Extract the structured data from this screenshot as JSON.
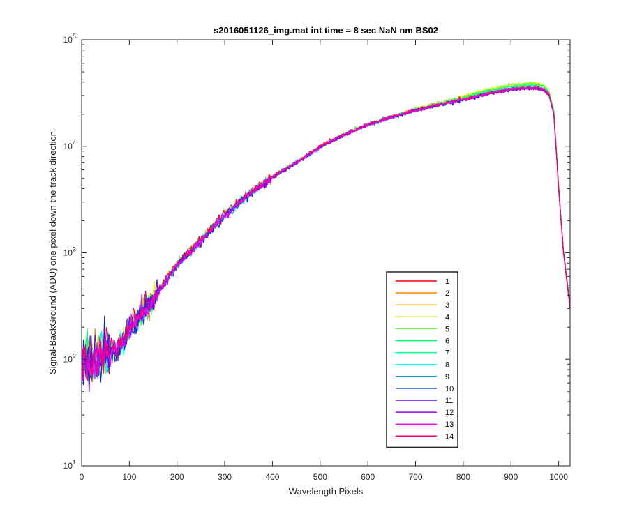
{
  "chart_data": {
    "type": "line",
    "title": "s2016051126_img.mat int time = 8 sec  NaN nm BS02",
    "xlabel": "Wavelength Pixels",
    "ylabel": "Signal-BackGround (ADU) one pixel down the track direction",
    "xlim": [
      0,
      1024
    ],
    "ylim": [
      10,
      100000
    ],
    "yscale": "log",
    "grid": false,
    "legend_position": "lower-right",
    "x_ticks": [
      0,
      100,
      200,
      300,
      400,
      500,
      600,
      700,
      800,
      900,
      1000
    ],
    "y_ticks": [
      {
        "value": 10,
        "base": "10",
        "exp": "1"
      },
      {
        "value": 100,
        "base": "10",
        "exp": "2"
      },
      {
        "value": 1000,
        "base": "10",
        "exp": "3"
      },
      {
        "value": 10000,
        "base": "10",
        "exp": "4"
      },
      {
        "value": 100000,
        "base": "10",
        "exp": "5"
      }
    ],
    "x": [
      0,
      10,
      20,
      40,
      60,
      80,
      100,
      150,
      200,
      250,
      300,
      350,
      400,
      450,
      500,
      550,
      600,
      650,
      700,
      750,
      800,
      850,
      900,
      930,
      950,
      960,
      970,
      980,
      990,
      1000,
      1010,
      1024
    ],
    "series": [
      {
        "name": "1",
        "color": "#ff0000",
        "values": [
          90,
          110,
          100,
          115,
          125,
          140,
          200,
          380,
          800,
          1350,
          2350,
          3600,
          5200,
          7100,
          10000,
          12900,
          16000,
          18900,
          22000,
          25000,
          28000,
          31500,
          34500,
          35000,
          34800,
          34000,
          33000,
          30000,
          20000,
          4000,
          1000,
          300
        ]
      },
      {
        "name": "2",
        "color": "#ff7f00",
        "values": [
          85,
          105,
          95,
          112,
          122,
          135,
          195,
          370,
          780,
          1320,
          2300,
          3550,
          5150,
          7050,
          9900,
          12800,
          15900,
          18850,
          22100,
          25200,
          28300,
          32500,
          35500,
          36500,
          36800,
          35800,
          34500,
          31000,
          20500,
          4100,
          1020,
          310
        ]
      },
      {
        "name": "3",
        "color": "#ffcc00",
        "values": [
          88,
          108,
          98,
          114,
          124,
          138,
          198,
          375,
          790,
          1330,
          2310,
          3560,
          5170,
          7080,
          9950,
          12850,
          15950,
          18900,
          22300,
          25600,
          29000,
          33800,
          37000,
          38200,
          38600,
          37500,
          36000,
          32000,
          21000,
          4200,
          1040,
          320
        ]
      },
      {
        "name": "4",
        "color": "#ccff00",
        "values": [
          87,
          106,
          97,
          113,
          123,
          137,
          196,
          372,
          785,
          1325,
          2305,
          3555,
          5160,
          7060,
          9920,
          12820,
          15920,
          18880,
          22200,
          25500,
          29200,
          34200,
          37800,
          39200,
          39800,
          38800,
          37200,
          33000,
          21500,
          4300,
          1050,
          325
        ]
      },
      {
        "name": "5",
        "color": "#66ff33",
        "values": [
          86,
          105,
          96,
          112,
          122,
          136,
          195,
          370,
          780,
          1320,
          2300,
          3550,
          5150,
          7050,
          9900,
          12800,
          15900,
          18850,
          22100,
          25300,
          28900,
          33700,
          37200,
          38500,
          39000,
          38100,
          36600,
          32500,
          21300,
          4250,
          1045,
          322
        ]
      },
      {
        "name": "6",
        "color": "#00ff66",
        "values": [
          85,
          104,
          95,
          111,
          121,
          135,
          194,
          368,
          775,
          1310,
          2290,
          3540,
          5140,
          7040,
          9890,
          12790,
          15890,
          18840,
          22000,
          25100,
          28500,
          33000,
          36400,
          37600,
          38000,
          37200,
          35800,
          31800,
          21000,
          4200,
          1040,
          320
        ]
      },
      {
        "name": "7",
        "color": "#00ff99",
        "values": [
          84,
          103,
          94,
          110,
          120,
          134,
          193,
          366,
          770,
          1300,
          2280,
          3530,
          5130,
          7030,
          9880,
          12780,
          15880,
          18830,
          21900,
          24900,
          28100,
          32300,
          35600,
          36700,
          37100,
          36300,
          35000,
          31200,
          20700,
          4150,
          1035,
          318
        ]
      },
      {
        "name": "8",
        "color": "#00ffff",
        "values": [
          83,
          102,
          93,
          109,
          119,
          133,
          192,
          364,
          765,
          1290,
          2270,
          3520,
          5120,
          7020,
          9870,
          12770,
          15870,
          18820,
          21800,
          24700,
          27700,
          31600,
          34800,
          35800,
          36200,
          35500,
          34300,
          30600,
          20400,
          4100,
          1030,
          316
        ]
      },
      {
        "name": "9",
        "color": "#0099ff",
        "values": [
          82,
          101,
          92,
          108,
          118,
          132,
          190,
          360,
          760,
          1280,
          2250,
          3500,
          5100,
          7000,
          9850,
          12750,
          15850,
          18800,
          21700,
          24500,
          27400,
          31000,
          34200,
          35100,
          35500,
          34800,
          33700,
          30100,
          20100,
          4050,
          1025,
          314
        ]
      },
      {
        "name": "10",
        "color": "#0033cc",
        "values": [
          80,
          99,
          90,
          106,
          116,
          130,
          188,
          355,
          750,
          1260,
          2220,
          3460,
          5050,
          6950,
          9780,
          12680,
          15780,
          18720,
          21600,
          24300,
          27100,
          30600,
          33700,
          34600,
          35000,
          34300,
          33200,
          29700,
          19800,
          4000,
          1020,
          312
        ]
      },
      {
        "name": "11",
        "color": "#6600ff",
        "values": [
          81,
          100,
          91,
          107,
          117,
          131,
          189,
          357,
          755,
          1270,
          2230,
          3480,
          5070,
          6970,
          9800,
          12700,
          15800,
          18750,
          21600,
          24400,
          27200,
          30800,
          34000,
          34900,
          35300,
          34600,
          33500,
          29900,
          19900,
          4020,
          1022,
          313
        ]
      },
      {
        "name": "12",
        "color": "#9900ff",
        "values": [
          82,
          101,
          92,
          108,
          118,
          132,
          190,
          359,
          758,
          1275,
          2240,
          3490,
          5080,
          6980,
          9820,
          12720,
          15820,
          18770,
          21650,
          24450,
          27300,
          30900,
          34100,
          35000,
          35400,
          34700,
          33600,
          30000,
          20000,
          4030,
          1024,
          314
        ]
      },
      {
        "name": "13",
        "color": "#ff00ff",
        "values": [
          84,
          103,
          94,
          110,
          120,
          134,
          192,
          364,
          768,
          1295,
          2270,
          3525,
          5120,
          7020,
          9870,
          12770,
          15870,
          18820,
          21750,
          24600,
          27500,
          31100,
          34300,
          35200,
          35600,
          34900,
          33800,
          30200,
          20100,
          4060,
          1028,
          316
        ]
      },
      {
        "name": "14",
        "color": "#ff0066",
        "values": [
          95,
          112,
          105,
          118,
          128,
          142,
          202,
          385,
          805,
          1360,
          2370,
          3620,
          5230,
          7130,
          10050,
          12950,
          16050,
          18950,
          21950,
          24800,
          27700,
          31300,
          34500,
          35300,
          35700,
          35000,
          33900,
          30300,
          20200,
          4080,
          1030,
          318
        ]
      }
    ]
  }
}
